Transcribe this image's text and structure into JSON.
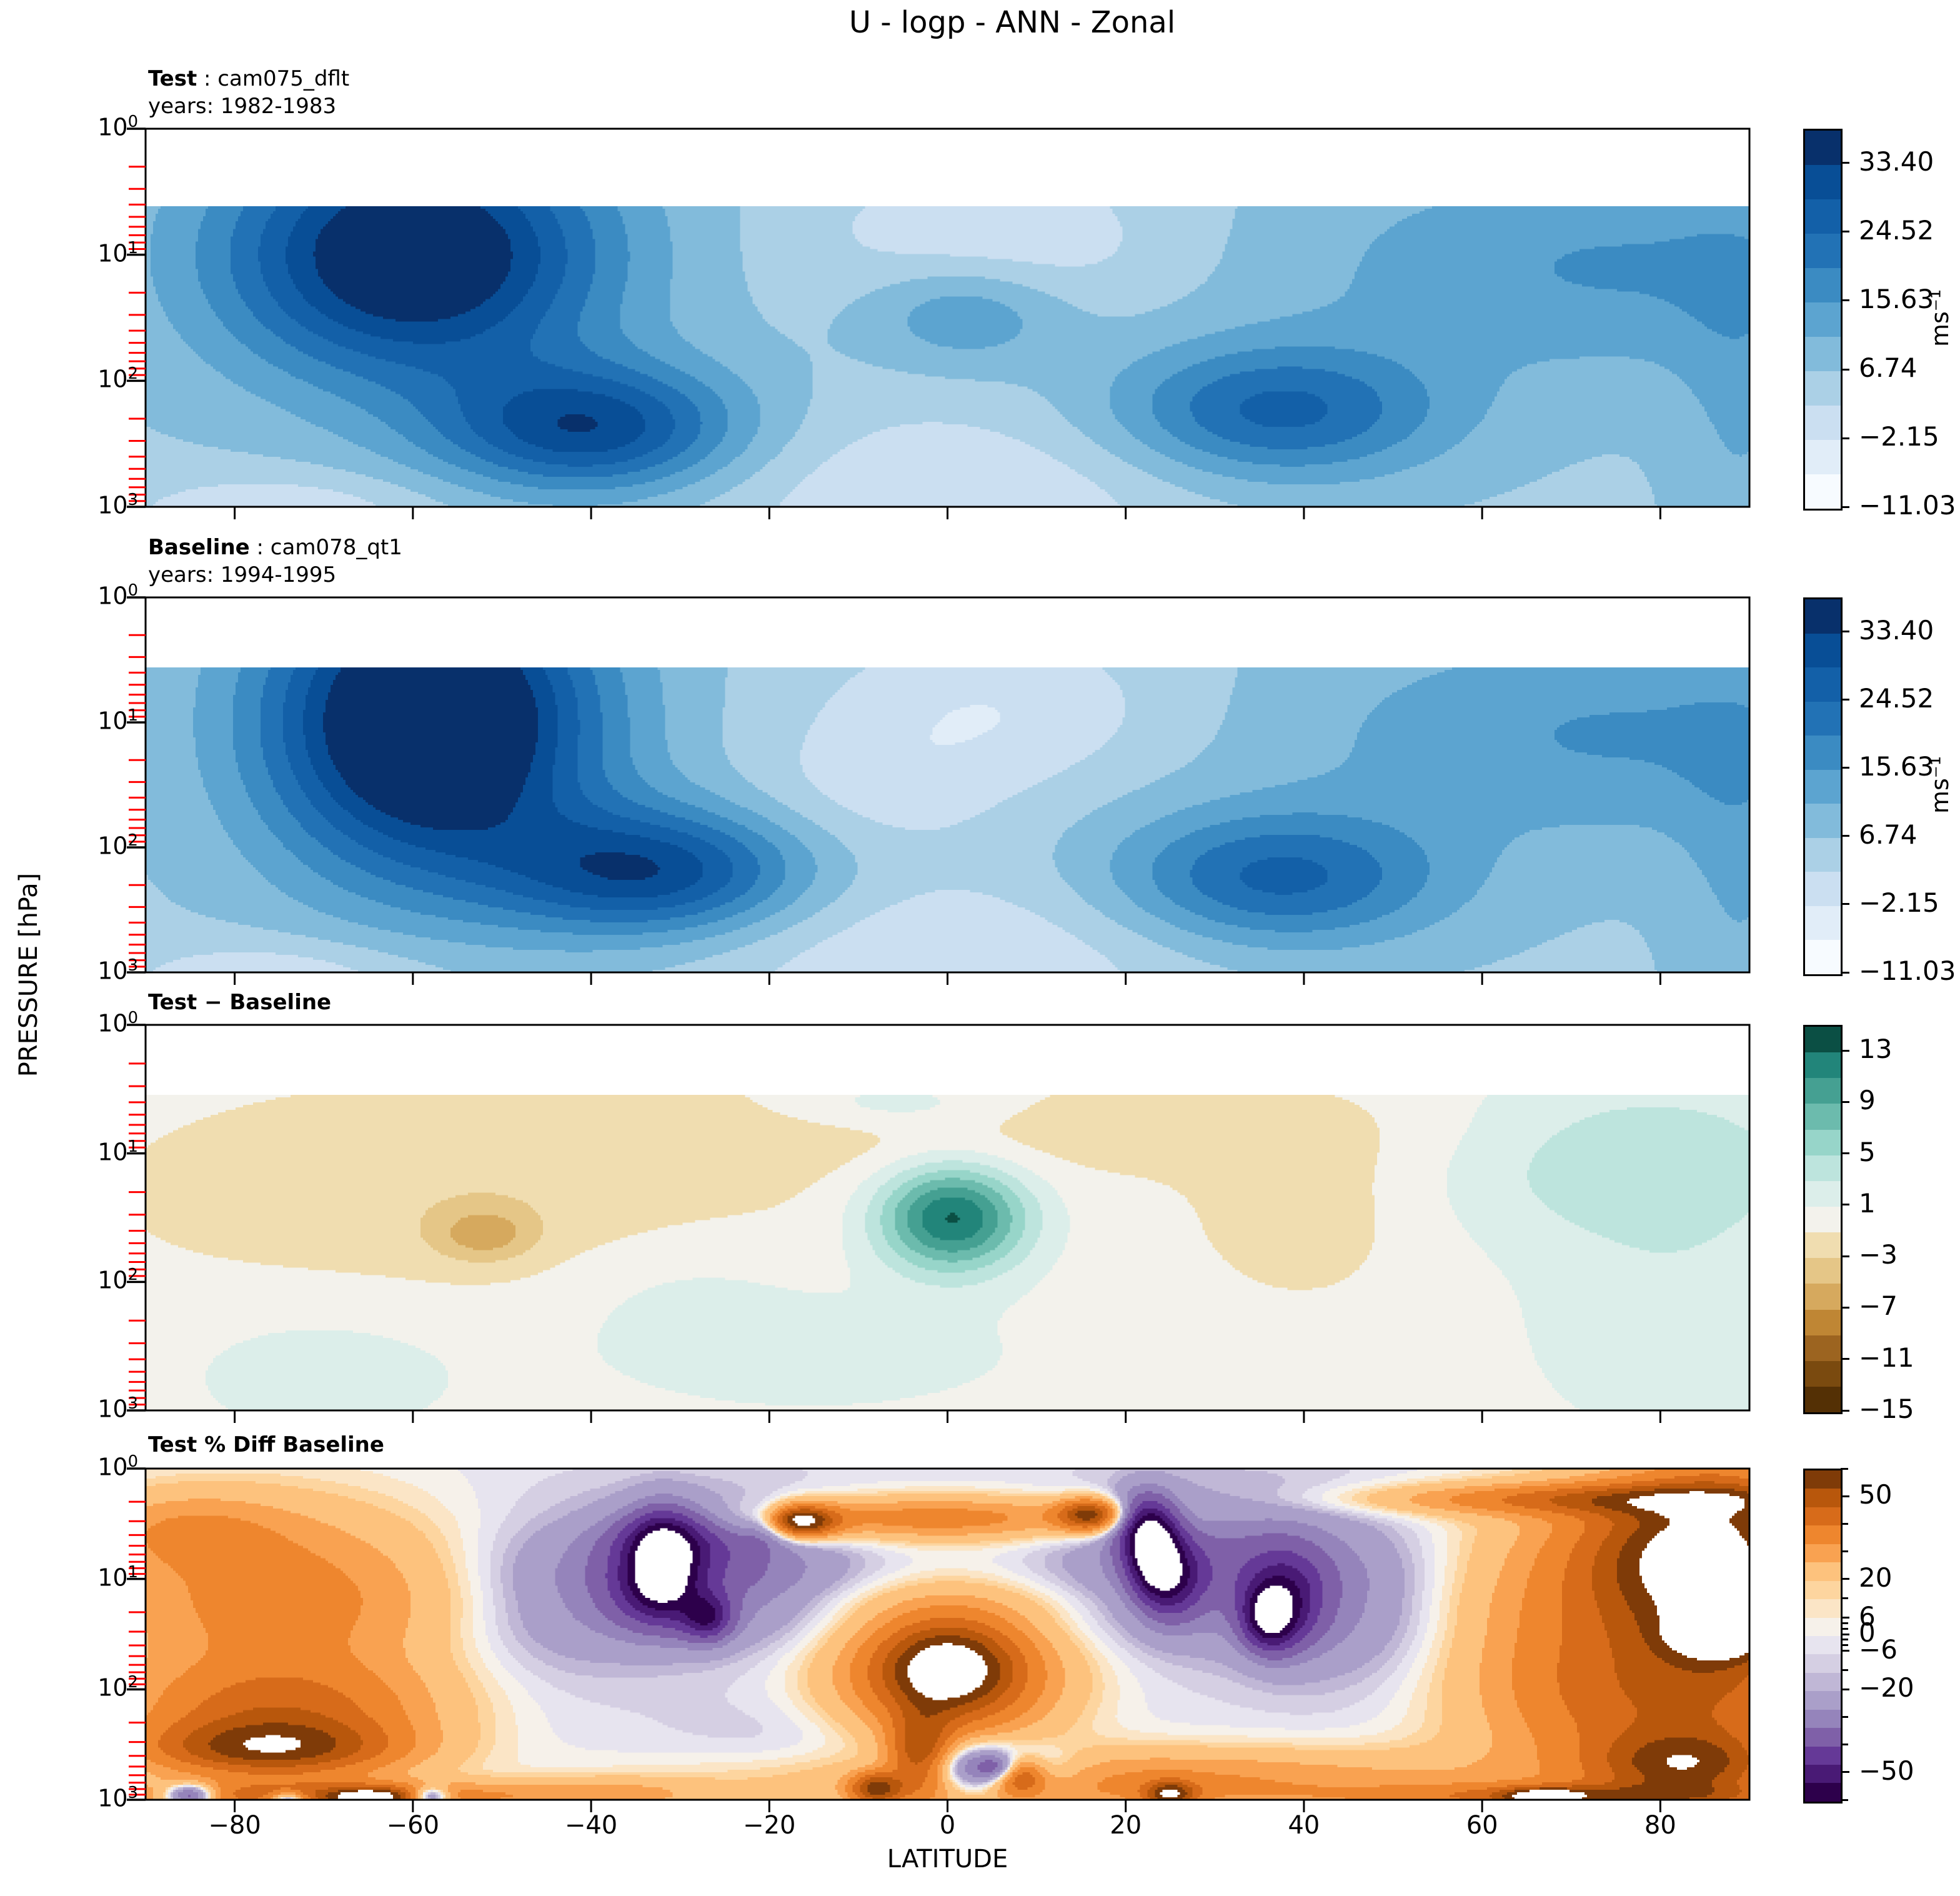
{
  "title": "U - logp - ANN - Zonal",
  "axes": {
    "ylabel": "PRESSURE [hPa]",
    "xlabel": "LATITUDE",
    "y_tick_base": "10",
    "y_tick_exps": [
      "0",
      "1",
      "2",
      "3"
    ],
    "x_tick_labels": [
      "−80",
      "−60",
      "−40",
      "−20",
      "0",
      "20",
      "40",
      "60",
      "80"
    ],
    "x_tick_values": [
      -80,
      -60,
      -40,
      -20,
      0,
      20,
      40,
      60,
      80
    ],
    "x_range": [
      -90,
      90
    ],
    "y_range_hpa": [
      1,
      1000
    ],
    "minor_tick_color": "#ff0000"
  },
  "chart_data": {
    "type": "heatmap",
    "description": "Zonal-mean zonal wind U vs latitude and log-pressure; four contourf panels: Test, Baseline, Test-Baseline, Test % Diff Baseline",
    "panels": [
      {
        "id": "test",
        "header": {
          "parts": [
            {
              "text": "Test",
              "bold": true
            },
            {
              "text": " : cam075_dflt",
              "bold": false
            }
          ],
          "line2": "years: 1982-1983"
        },
        "colorbar": {
          "unit": "ms⁻¹",
          "levels": [
            -11.03,
            -6.59,
            -2.15,
            2.3,
            6.74,
            11.18,
            15.63,
            20.07,
            24.52,
            28.96,
            33.4,
            37.84
          ],
          "colors": [
            "#f7fbff",
            "#e1edf8",
            "#cbdff1",
            "#abd0e6",
            "#82bbdb",
            "#5ca4d0",
            "#3b8bc2",
            "#2272b5",
            "#1360a8",
            "#084e96",
            "#08306b"
          ],
          "tick_values": [
            33.4,
            24.52,
            15.63,
            6.74,
            -2.15,
            -11.03
          ],
          "tick_labels": [
            "33.40",
            "24.52",
            "15.63",
            "6.74",
            "−2.15",
            "−11.03"
          ],
          "minor_all_levels": false
        },
        "field": {
          "base": 6,
          "data_top_logp": 0.62,
          "out_of_range": "clamp",
          "features": [
            [
              36,
              -60,
              1.0,
              15,
              0.7
            ],
            [
              26,
              -40,
              2.38,
              12,
              0.36
            ],
            [
              20,
              37,
              2.25,
              13,
              0.38
            ],
            [
              10,
              75,
              1.1,
              25,
              0.6
            ],
            [
              11,
              2,
              1.45,
              8,
              0.3
            ],
            [
              -8,
              5,
              0.9,
              14,
              0.45
            ],
            [
              -8,
              0,
              2.9,
              20,
              0.5
            ],
            [
              -8,
              -75,
              3.05,
              12,
              0.22
            ],
            [
              5,
              89,
              2.3,
              5,
              1.0
            ]
          ]
        }
      },
      {
        "id": "baseline",
        "header": {
          "parts": [
            {
              "text": "Baseline",
              "bold": true
            },
            {
              "text": " : cam078_qt1",
              "bold": false
            }
          ],
          "line2": "years: 1994-1995"
        },
        "colorbar": {
          "unit": "ms⁻¹",
          "levels": [
            -11.03,
            -6.59,
            -2.15,
            2.3,
            6.74,
            11.18,
            15.63,
            20.07,
            24.52,
            28.96,
            33.4,
            37.84
          ],
          "colors": [
            "#f7fbff",
            "#e1edf8",
            "#cbdff1",
            "#abd0e6",
            "#82bbdb",
            "#5ca4d0",
            "#3b8bc2",
            "#2272b5",
            "#1360a8",
            "#084e96",
            "#08306b"
          ],
          "tick_values": [
            33.4,
            24.52,
            15.63,
            6.74,
            -2.15,
            -11.03
          ],
          "tick_labels": [
            "33.40",
            "24.52",
            "15.63",
            "6.74",
            "−2.15",
            "−11.03"
          ],
          "minor_all_levels": false
        },
        "field": {
          "base": 6,
          "data_top_logp": 0.56,
          "out_of_range": "clamp",
          "features": [
            [
              42,
              -58,
              1.0,
              13,
              0.85
            ],
            [
              26,
              -33,
              2.2,
              12,
              0.36
            ],
            [
              20,
              37,
              2.25,
              13,
              0.38
            ],
            [
              10,
              75,
              1.1,
              25,
              0.6
            ],
            [
              -5,
              -8,
              1.55,
              10,
              0.35
            ],
            [
              -8,
              5,
              0.9,
              14,
              0.45
            ],
            [
              -8,
              0,
              2.9,
              20,
              0.5
            ],
            [
              -8,
              -75,
              3.05,
              12,
              0.22
            ],
            [
              5,
              89,
              2.3,
              5,
              1.0
            ]
          ]
        }
      },
      {
        "id": "diff",
        "header": {
          "parts": [
            {
              "text": "Test − Baseline",
              "bold": true
            }
          ],
          "line2": ""
        },
        "colorbar": {
          "unit": "",
          "levels": [
            -15,
            -13,
            -11,
            -9,
            -7,
            -5,
            -3,
            -1,
            1,
            3,
            5,
            7,
            9,
            11,
            13,
            15
          ],
          "colors": [
            "#543005",
            "#7a4a0f",
            "#9c6420",
            "#bf8634",
            "#d6a95e",
            "#e5c687",
            "#f0ddb0",
            "#f3f2ec",
            "#dceeea",
            "#bde4dd",
            "#97d5c9",
            "#6cbbad",
            "#45a092",
            "#22857a",
            "#0b4f44"
          ],
          "tick_values": [
            13,
            9,
            5,
            1,
            -3,
            -7,
            -11,
            -15
          ],
          "tick_labels": [
            "13",
            "9",
            "5",
            "1",
            "−3",
            "−7",
            "−11",
            "−15"
          ],
          "minor_all_levels": false
        },
        "field": {
          "base": 0,
          "data_top_logp": 0.55,
          "out_of_range": "clamp",
          "features": [
            [
              13.5,
              0.5,
              1.5,
              6,
              0.3
            ],
            [
              3,
              -6,
              0.62,
              9,
              0.14
            ],
            [
              4.5,
              78,
              1.05,
              16,
              0.5
            ],
            [
              2.5,
              82,
              2.4,
              12,
              0.6
            ],
            [
              -2.5,
              -55,
              1.3,
              28,
              0.6
            ],
            [
              -4.5,
              -52,
              1.63,
              4,
              0.15
            ],
            [
              -2,
              10,
              0.8,
              35,
              0.28
            ],
            [
              -2.2,
              40,
              1.45,
              9,
              0.5
            ],
            [
              2,
              -70,
              2.7,
              12,
              0.4
            ],
            [
              1.5,
              -30,
              2.05,
              10,
              0.35
            ],
            [
              2,
              -15,
              2.55,
              18,
              0.35
            ]
          ]
        }
      },
      {
        "id": "pctdiff",
        "header": {
          "parts": [
            {
              "text": "Test % Diff Baseline",
              "bold": true
            }
          ],
          "line2": ""
        },
        "colorbar": {
          "unit": "",
          "levels": [
            -60,
            -50,
            -40,
            -30,
            -20,
            -13,
            -6,
            -4,
            -2,
            0,
            2,
            4,
            6,
            13,
            20,
            30,
            40,
            50,
            60
          ],
          "colors": [
            "#2d004b",
            "#491a75",
            "#653997",
            "#7f60a8",
            "#9584bb",
            "#aa9fc9",
            "#c0b7d6",
            "#d5cfe3",
            "#e7e4ef",
            "#f6f1ea",
            "#fbe5c6",
            "#fdd59f",
            "#fdc27d",
            "#f9a251",
            "#ee862e",
            "#d76b1a",
            "#b8570c",
            "#7f3b08"
          ],
          "tick_values": [
            50,
            20,
            6,
            0,
            -6,
            -20,
            -50
          ],
          "tick_labels": [
            "50",
            "20",
            "6",
            "0",
            "−6",
            "−20",
            "−50"
          ],
          "minor_all_levels": true
        },
        "field": {
          "base": -1,
          "data_top_logp": 0,
          "out_of_range": "white",
          "features": [
            [
              26,
              -75,
              1.2,
              14,
              0.6
            ],
            [
              14,
              -86,
              0.55,
              8,
              0.25
            ],
            [
              30,
              -75,
              2.2,
              12,
              0.3
            ],
            [
              45,
              -76,
              2.55,
              10,
              0.18
            ],
            [
              35,
              -70,
              2.97,
              16,
              0.1
            ],
            [
              45,
              -65,
              2.98,
              3,
              0.06
            ],
            [
              -45,
              -85,
              2.96,
              2,
              0.07
            ],
            [
              -40,
              -74,
              3.0,
              1.5,
              0.05
            ],
            [
              -38,
              -58,
              2.97,
              1.5,
              0.06
            ],
            [
              12,
              -38,
              2.95,
              8,
              0.1
            ],
            [
              -22,
              -26,
              0.95,
              10,
              0.42
            ],
            [
              -25,
              -31,
              0.62,
              5,
              0.2
            ],
            [
              -25,
              -33,
              1.1,
              4,
              0.25
            ],
            [
              -40,
              -32,
              0.85,
              2.5,
              0.3
            ],
            [
              -35,
              -27,
              1.35,
              2,
              0.15
            ],
            [
              -30,
              -20,
              0.5,
              2,
              0.12
            ],
            [
              -10,
              -44,
              1.15,
              8,
              0.5
            ],
            [
              26,
              -2,
              0.45,
              16,
              0.14
            ],
            [
              65,
              -17,
              0.48,
              3,
              0.1
            ],
            [
              50,
              16,
              0.42,
              2.5,
              0.1
            ],
            [
              40,
              0,
              1.9,
              9,
              0.45
            ],
            [
              40,
              0,
              1.8,
              5,
              0.28
            ],
            [
              3,
              0,
              1.2,
              30,
              0.15
            ],
            [
              -22,
              30,
              0.9,
              11,
              0.45
            ],
            [
              -35,
              22,
              0.5,
              2.5,
              0.2
            ],
            [
              -35,
              25,
              1.0,
              2.5,
              0.25
            ],
            [
              -30,
              38,
              1.2,
              3,
              0.3
            ],
            [
              -40,
              23,
              0.75,
              2,
              0.25
            ],
            [
              -40,
              36,
              1.35,
              2,
              0.2
            ],
            [
              -10,
              45,
              1.3,
              8,
              0.5
            ],
            [
              26,
              76,
              1.3,
              13,
              0.75
            ],
            [
              30,
              74,
              0.28,
              18,
              0.1
            ],
            [
              38,
              82,
              0.75,
              8,
              0.45
            ],
            [
              30,
              88,
              1.0,
              6,
              0.8
            ],
            [
              24,
              78,
              2.2,
              12,
              0.5
            ],
            [
              40,
              87,
              1.5,
              4,
              0.15
            ],
            [
              40,
              83,
              2.7,
              7,
              0.22
            ],
            [
              30,
              72,
              2.97,
              16,
              0.08
            ],
            [
              45,
              67,
              2.97,
              3,
              0.05
            ],
            [
              24,
              20,
              2.85,
              30,
              0.22
            ],
            [
              45,
              -8,
              2.9,
              2,
              0.1
            ],
            [
              45,
              8,
              2.78,
              2,
              0.12
            ],
            [
              45,
              -3,
              2.6,
              2.5,
              0.25
            ],
            [
              45,
              25,
              2.95,
              2,
              0.08
            ],
            [
              -40,
              4,
              2.72,
              6,
              0.16
            ],
            [
              -20,
              6,
              2.72,
              1.5,
              0.08
            ],
            [
              -6,
              -8,
              2.55,
              14,
              0.35
            ]
          ]
        }
      }
    ]
  }
}
